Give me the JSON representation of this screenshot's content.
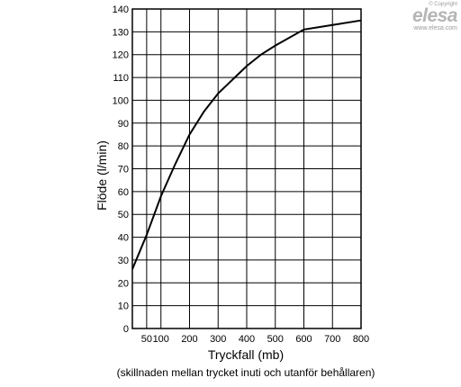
{
  "chart_data": {
    "type": "line",
    "ylabel": "Flöde (l/min)",
    "xlabel": "Tryckfall (mb)",
    "xlabel_sub": "(skillnaden mellan trycket inuti och utanför behållaren)",
    "xlim": [
      0,
      800
    ],
    "ylim": [
      0,
      140
    ],
    "x_ticks": [
      {
        "value": 50,
        "label": "50"
      },
      {
        "value": 100,
        "label": "100"
      },
      {
        "value": 200,
        "label": "200"
      },
      {
        "value": 300,
        "label": "300"
      },
      {
        "value": 400,
        "label": "400"
      },
      {
        "value": 500,
        "label": "500"
      },
      {
        "value": 600,
        "label": "600"
      },
      {
        "value": 700,
        "label": "700"
      },
      {
        "value": 800,
        "label": "800"
      }
    ],
    "y_ticks": [
      0,
      10,
      20,
      30,
      40,
      50,
      60,
      70,
      80,
      90,
      100,
      110,
      120,
      130,
      140
    ],
    "grid": true,
    "series": [
      {
        "points": [
          [
            0,
            26
          ],
          [
            50,
            41
          ],
          [
            100,
            58
          ],
          [
            150,
            72
          ],
          [
            200,
            85
          ],
          [
            250,
            95
          ],
          [
            300,
            103
          ],
          [
            350,
            109
          ],
          [
            400,
            115
          ],
          [
            450,
            120
          ],
          [
            500,
            124
          ],
          [
            600,
            131
          ],
          [
            700,
            133
          ],
          [
            800,
            135
          ]
        ]
      }
    ]
  },
  "logo": {
    "copyright": "© Copyright",
    "name": "elesa",
    "url": "www.elesa.com"
  },
  "colors": {
    "line": "#000000",
    "grid": "#000000",
    "logo": "#b5b5b5"
  }
}
